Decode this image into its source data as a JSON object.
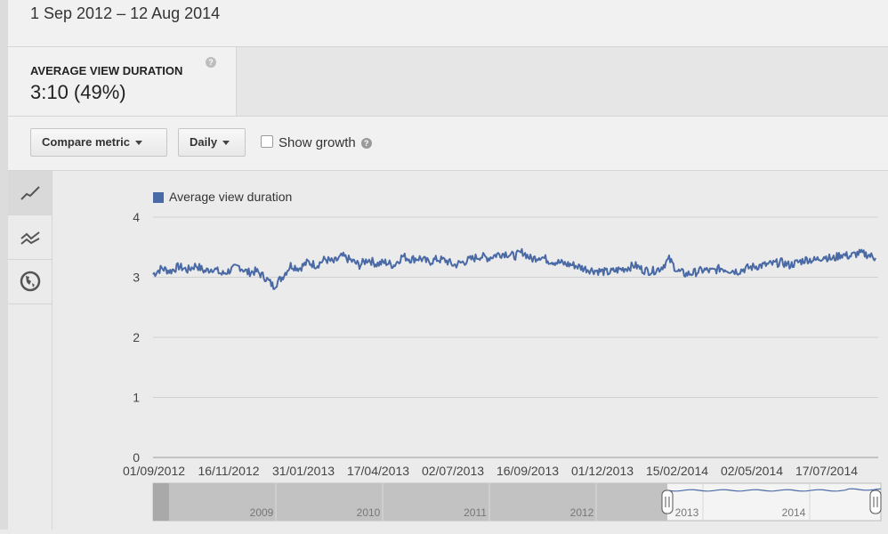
{
  "header": {
    "date_range": "1 Sep 2012 – 12 Aug 2014"
  },
  "metric": {
    "title": "AVERAGE VIEW DURATION",
    "value": "3:10 (49%)",
    "help_icon": "help-icon"
  },
  "toolbar": {
    "compare_label": "Compare metric",
    "interval_label": "Daily",
    "show_growth_label": "Show growth",
    "show_growth_checked": false
  },
  "side_tabs": [
    {
      "name": "line-chart-icon",
      "active": true
    },
    {
      "name": "multi-line-chart-icon",
      "active": false
    },
    {
      "name": "globe-icon",
      "active": false
    }
  ],
  "chart_data": {
    "type": "line",
    "legend": "Average view duration",
    "series_color": "#4a6aa5",
    "ylim": [
      0,
      4
    ],
    "yticks": [
      "0",
      "1",
      "2",
      "3",
      "4"
    ],
    "xticks": [
      "01/09/2012",
      "16/11/2012",
      "31/01/2013",
      "17/04/2013",
      "02/07/2013",
      "16/09/2013",
      "01/12/2013",
      "15/02/2014",
      "02/05/2014",
      "17/07/2014"
    ],
    "grid": true,
    "series": [
      {
        "values": [
          3.05,
          3.15,
          3.1,
          3.18,
          3.12,
          3.2,
          3.1,
          3.15,
          3.05,
          3.12,
          3.18,
          3.08,
          3.1,
          3.0,
          2.85,
          3.0,
          3.2,
          3.15,
          3.25,
          3.2,
          3.3,
          3.25,
          3.35,
          3.28,
          3.2,
          3.3,
          3.22,
          3.25,
          3.2,
          3.35,
          3.3,
          3.32,
          3.25,
          3.3,
          3.28,
          3.2,
          3.25,
          3.3,
          3.35,
          3.32,
          3.38,
          3.4,
          3.35,
          3.42,
          3.3,
          3.35,
          3.28,
          3.25,
          3.22,
          3.2,
          3.15,
          3.12,
          3.1,
          3.08,
          3.12,
          3.15,
          3.2,
          3.12,
          3.1,
          3.15,
          3.3,
          3.1,
          3.05,
          3.08,
          3.12,
          3.1,
          3.15,
          3.12,
          3.1,
          3.15,
          3.18,
          3.2,
          3.22,
          3.25,
          3.2,
          3.25,
          3.3,
          3.28,
          3.35,
          3.3,
          3.38,
          3.35,
          3.4,
          3.38,
          3.32
        ]
      }
    ]
  },
  "navigator": {
    "years": [
      "2009",
      "2010",
      "2011",
      "2012",
      "2013",
      "2014"
    ]
  }
}
